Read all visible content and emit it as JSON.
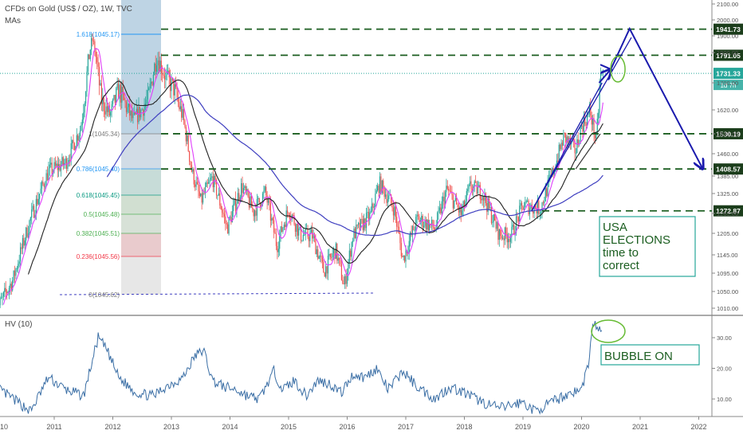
{
  "header": {
    "symbol": "CFDs on Gold (US$ / OZ), 1W, TVC",
    "indicator": "MAs"
  },
  "chart_data": [
    {
      "type": "candlestick",
      "title": "CFDs on Gold (US$ / OZ), 1W, TVC",
      "y_axis_ticks": [
        2100,
        2000,
        1900,
        1800,
        1700,
        1620,
        1530,
        1460,
        1385,
        1325,
        1265,
        1205,
        1145,
        1095,
        1050,
        1010
      ],
      "x_axis_ticks": [
        "2011",
        "2012",
        "2013",
        "2014",
        "2015",
        "2016",
        "2017",
        "2018",
        "2019",
        "2020",
        "2021",
        "2022"
      ],
      "x_axis_first_label": "10",
      "price_path": [
        [
          2010.0,
          1000
        ],
        [
          2010.3,
          1080
        ],
        [
          2010.6,
          1250
        ],
        [
          2010.9,
          1400
        ],
        [
          2011.2,
          1430
        ],
        [
          2011.45,
          1550
        ],
        [
          2011.65,
          1880
        ],
        [
          2011.8,
          1650
        ],
        [
          2011.95,
          1600
        ],
        [
          2012.1,
          1680
        ],
        [
          2012.35,
          1580
        ],
        [
          2012.6,
          1650
        ],
        [
          2012.75,
          1790
        ],
        [
          2012.9,
          1720
        ],
        [
          2013.05,
          1680
        ],
        [
          2013.2,
          1590
        ],
        [
          2013.35,
          1400
        ],
        [
          2013.5,
          1300
        ],
        [
          2013.7,
          1380
        ],
        [
          2013.95,
          1220
        ],
        [
          2014.2,
          1350
        ],
        [
          2014.4,
          1270
        ],
        [
          2014.6,
          1330
        ],
        [
          2014.8,
          1170
        ],
        [
          2015.0,
          1280
        ],
        [
          2015.2,
          1200
        ],
        [
          2015.4,
          1200
        ],
        [
          2015.6,
          1100
        ],
        [
          2015.8,
          1160
        ],
        [
          2015.95,
          1060
        ],
        [
          2016.1,
          1200
        ],
        [
          2016.4,
          1260
        ],
        [
          2016.55,
          1360
        ],
        [
          2016.8,
          1280
        ],
        [
          2016.95,
          1130
        ],
        [
          2017.2,
          1250
        ],
        [
          2017.5,
          1220
        ],
        [
          2017.7,
          1340
        ],
        [
          2017.95,
          1260
        ],
        [
          2018.1,
          1350
        ],
        [
          2018.3,
          1330
        ],
        [
          2018.6,
          1200
        ],
        [
          2018.8,
          1200
        ],
        [
          2019.0,
          1290
        ],
        [
          2019.3,
          1280
        ],
        [
          2019.55,
          1420
        ],
        [
          2019.7,
          1520
        ],
        [
          2019.9,
          1470
        ],
        [
          2020.0,
          1560
        ],
        [
          2020.15,
          1610
        ],
        [
          2020.25,
          1500
        ],
        [
          2020.32,
          1720
        ],
        [
          2020.38,
          1731
        ]
      ],
      "fibonacci": {
        "levels": [
          {
            "label": "1.618(1045.17)",
            "color": "#2196f3"
          },
          {
            "label": "1(1045.34)",
            "color": "#787878"
          },
          {
            "label": "0.786(1045.40)",
            "color": "#2196f3"
          },
          {
            "label": "0.618(1045.45)",
            "color": "#089981"
          },
          {
            "label": "0.5(1045.48)",
            "color": "#4caf50"
          },
          {
            "label": "0.382(1045.51)",
            "color": "#4caf50"
          },
          {
            "label": "0.236(1045.56)",
            "color": "#f23645"
          },
          {
            "label": "0(1045.62)",
            "color": "#787878"
          }
        ]
      },
      "horizontal_levels": [
        {
          "value": 1941.73,
          "label": "1941.73"
        },
        {
          "value": 1791.05,
          "label": "1791.05"
        },
        {
          "value": 1530.19,
          "label": "1530.19"
        },
        {
          "value": 1408.57,
          "label": "1408.57"
        },
        {
          "value": 1272.87,
          "label": "1272.87"
        }
      ],
      "current_price": {
        "value": 1731.33,
        "label": "1731.33",
        "countdown": "1d 7h"
      },
      "annotation": "USA\nELECTIONS\ntime to\ncorrect",
      "colors": {
        "up": "#26a69a",
        "down": "#ef5350",
        "level": "#1b5e20",
        "arrow": "#1a1aad",
        "ma_fast": "#e040fb",
        "ma_mid": "#212121",
        "ma_slow": "#3f3fc0",
        "price_line": "#26a69a"
      }
    },
    {
      "type": "line",
      "title": "HV (10)",
      "y_axis_ticks": [
        30,
        20,
        10
      ],
      "y_axis_tick_labels": [
        "30.00",
        "20.00",
        "10.00"
      ],
      "annotation": "BUBBLE ON",
      "points": [
        [
          2010.0,
          14
        ],
        [
          2010.3,
          10
        ],
        [
          2010.6,
          6
        ],
        [
          2010.9,
          17
        ],
        [
          2011.2,
          13
        ],
        [
          2011.5,
          11
        ],
        [
          2011.75,
          30
        ],
        [
          2011.9,
          26
        ],
        [
          2012.1,
          17
        ],
        [
          2012.4,
          12
        ],
        [
          2012.7,
          11
        ],
        [
          2012.9,
          14
        ],
        [
          2013.2,
          17
        ],
        [
          2013.4,
          24
        ],
        [
          2013.55,
          26
        ],
        [
          2013.7,
          16
        ],
        [
          2013.9,
          14
        ],
        [
          2014.1,
          13
        ],
        [
          2014.3,
          11
        ],
        [
          2014.5,
          10
        ],
        [
          2014.75,
          19
        ],
        [
          2014.9,
          13
        ],
        [
          2015.1,
          16
        ],
        [
          2015.3,
          11
        ],
        [
          2015.5,
          16
        ],
        [
          2015.7,
          15
        ],
        [
          2015.9,
          12
        ],
        [
          2016.1,
          18
        ],
        [
          2016.3,
          17
        ],
        [
          2016.5,
          20
        ],
        [
          2016.7,
          13
        ],
        [
          2016.95,
          19
        ],
        [
          2017.2,
          14
        ],
        [
          2017.5,
          10
        ],
        [
          2017.75,
          14
        ],
        [
          2018.0,
          12
        ],
        [
          2018.3,
          9
        ],
        [
          2018.6,
          7
        ],
        [
          2018.8,
          8
        ],
        [
          2019.0,
          9
        ],
        [
          2019.2,
          6
        ],
        [
          2019.4,
          8
        ],
        [
          2019.6,
          10
        ],
        [
          2019.8,
          12
        ],
        [
          2020.0,
          13
        ],
        [
          2020.12,
          22
        ],
        [
          2020.2,
          35
        ],
        [
          2020.28,
          33
        ],
        [
          2020.35,
          31
        ]
      ]
    }
  ]
}
